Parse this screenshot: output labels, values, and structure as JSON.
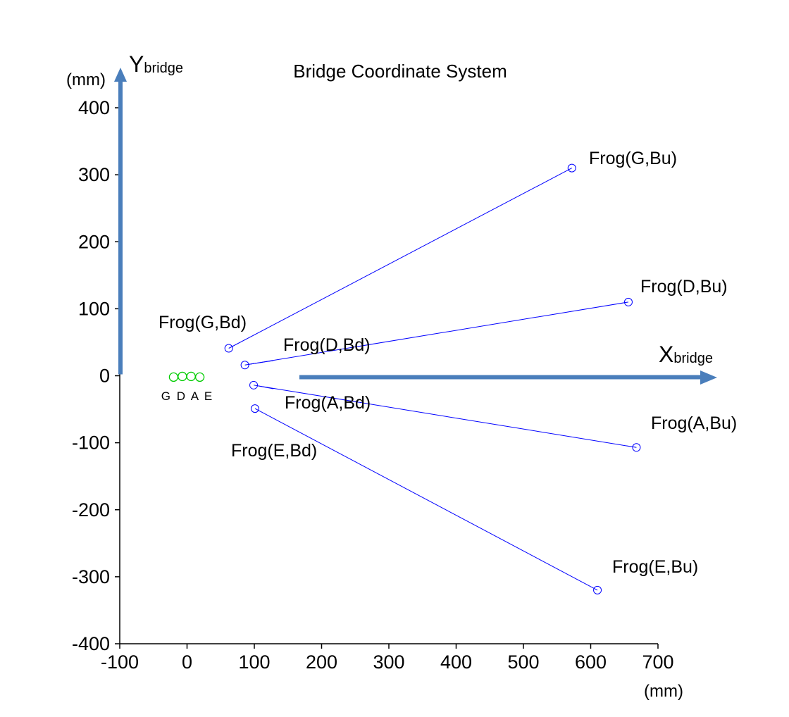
{
  "chart_data": {
    "type": "scatter",
    "title": "Bridge Coordinate System",
    "x_unit": "(mm)",
    "y_unit": "(mm)",
    "xlim": [
      -100,
      700
    ],
    "ylim": [
      -400,
      400
    ],
    "x_ticks": [
      -100,
      0,
      100,
      200,
      300,
      400,
      500,
      600,
      700
    ],
    "y_ticks": [
      400,
      300,
      200,
      100,
      0,
      -100,
      -200,
      -300,
      -400
    ],
    "x_axis_name": {
      "main": "X",
      "sub": "bridge"
    },
    "y_axis_name": {
      "main": "Y",
      "sub": "bridge"
    },
    "origin_points": {
      "color": "#00cc00",
      "x": [
        -20,
        -7,
        6,
        19
      ],
      "y": [
        -2,
        -1,
        -1,
        -2
      ],
      "label": "G D A E"
    },
    "series": [
      {
        "label_bd": "Frog(G,Bd)",
        "label_bu": "Frog(G,Bu)",
        "bd": [
          62,
          41
        ],
        "bu": [
          572,
          310
        ]
      },
      {
        "label_bd": "Frog(D,Bd)",
        "label_bu": "Frog(D,Bu)",
        "bd": [
          86,
          16
        ],
        "bu": [
          656,
          110
        ]
      },
      {
        "label_bd": "Frog(A,Bd)",
        "label_bu": "Frog(A,Bu)",
        "bd": [
          99,
          -14
        ],
        "bu": [
          668,
          -107
        ]
      },
      {
        "label_bd": "Frog(E,Bd)",
        "label_bu": "Frog(E,Bu)",
        "bd": [
          101,
          -49
        ],
        "bu": [
          610,
          -320
        ]
      }
    ],
    "line_color": "#0000ff",
    "axis_arrow_color": "#4a7ebb"
  }
}
